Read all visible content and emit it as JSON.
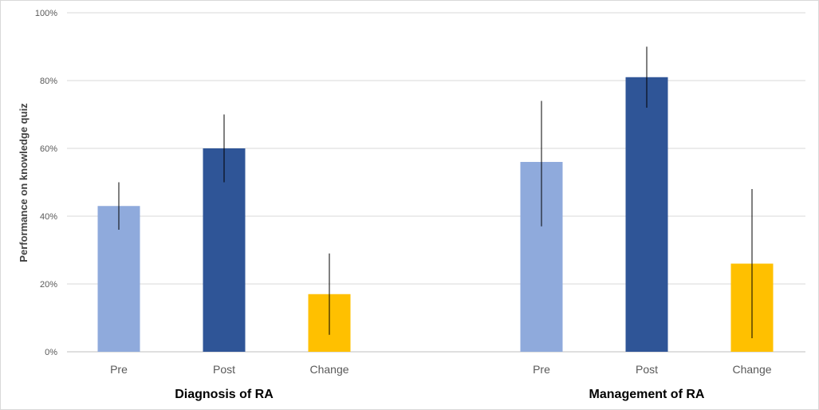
{
  "chart_data": {
    "type": "bar",
    "ylabel": "Performance on knowledge quiz",
    "ylim": [
      0,
      100
    ],
    "y_ticks": [
      "0%",
      "20%",
      "40%",
      "60%",
      "80%",
      "100%"
    ],
    "grid": true,
    "groups": [
      {
        "name": "Diagnosis of RA",
        "bars": [
          {
            "category": "Pre",
            "value": 43,
            "err_low": 36,
            "err_high": 50,
            "color": "#8faadc"
          },
          {
            "category": "Post",
            "value": 60,
            "err_low": 50,
            "err_high": 70,
            "color": "#2f5597"
          },
          {
            "category": "Change",
            "value": 17,
            "err_low": 5,
            "err_high": 29,
            "color": "#ffc000"
          }
        ]
      },
      {
        "name": "Management of RA",
        "bars": [
          {
            "category": "Pre",
            "value": 56,
            "err_low": 37,
            "err_high": 74,
            "color": "#8faadc"
          },
          {
            "category": "Post",
            "value": 81,
            "err_low": 72,
            "err_high": 90,
            "color": "#2f5597"
          },
          {
            "category": "Change",
            "value": 26,
            "err_low": 4,
            "err_high": 48,
            "color": "#ffc000"
          }
        ]
      }
    ]
  }
}
